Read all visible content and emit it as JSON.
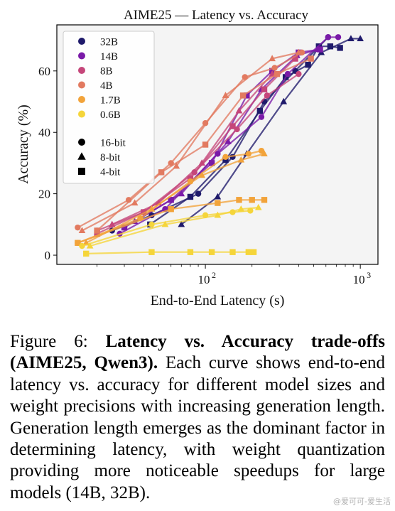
{
  "colors": {
    "32B": "#1f1a6b",
    "14B": "#7a1aa8",
    "8B": "#c5467a",
    "4B": "#e27a60",
    "1.7B": "#f2a33a",
    "0.6B": "#f5d53a",
    "plot_bg": "#f4f4f4"
  },
  "caption": {
    "prefix": "Figure 6: ",
    "bold": "Latency vs.  Accuracy trade-offs (AIME25, Qwen3).",
    "body": " Each curve shows end-to-end latency vs.  accuracy for different model sizes and weight precisions with increasing generation length.  Generation length emerges as the dominant factor in determining latency, with weight quantization providing more noticeable speedups for large models (14B, 32B)."
  },
  "watermark": "@爱可可-爱生活",
  "chart_data": {
    "type": "line",
    "title": "AIME25 — Latency vs. Accuracy",
    "xlabel": "End-to-End Latency (s)",
    "ylabel": "Accuracy (%)",
    "xscale": "log",
    "xlim": [
      11,
      1300
    ],
    "ylim": [
      -3,
      75
    ],
    "xticks": [
      {
        "value": 100,
        "base": "10",
        "exp": "2"
      },
      {
        "value": 1000,
        "base": "10",
        "exp": "3"
      }
    ],
    "yticks": [
      0,
      20,
      40,
      60
    ],
    "grid": false,
    "legend_position": "top-left",
    "legend_models": [
      "32B",
      "14B",
      "8B",
      "4B",
      "1.7B",
      "0.6B"
    ],
    "legend_precisions": [
      {
        "label": "16-bit",
        "marker": "circle"
      },
      {
        "label": "8-bit",
        "marker": "triangle"
      },
      {
        "label": "4-bit",
        "marker": "square"
      }
    ],
    "series": [
      {
        "model": "32B",
        "precision": "16-bit",
        "marker": "circle",
        "points": [
          [
            25,
            8
          ],
          [
            45,
            13
          ],
          [
            90,
            20
          ],
          [
            150,
            32
          ],
          [
            240,
            50
          ],
          [
            380,
            60
          ],
          [
            620,
            71
          ]
        ]
      },
      {
        "model": "32B",
        "precision": "8-bit",
        "marker": "triangle",
        "points": [
          [
            70,
            10
          ],
          [
            120,
            19
          ],
          [
            185,
            33
          ],
          [
            320,
            50
          ],
          [
            560,
            66
          ],
          [
            870,
            70.5
          ],
          [
            1000,
            70.5
          ]
        ]
      },
      {
        "model": "32B",
        "precision": "4-bit",
        "marker": "square",
        "points": [
          [
            44,
            10
          ],
          [
            80,
            19
          ],
          [
            135,
            31
          ],
          [
            225,
            47
          ],
          [
            330,
            58
          ],
          [
            460,
            62
          ],
          [
            540,
            68
          ],
          [
            640,
            68
          ],
          [
            740,
            67.5
          ]
        ]
      },
      {
        "model": "14B",
        "precision": "16-bit",
        "marker": "circle",
        "points": [
          [
            28,
            7
          ],
          [
            55,
            15
          ],
          [
            120,
            33
          ],
          [
            230,
            45
          ],
          [
            340,
            59
          ],
          [
            620,
            71
          ],
          [
            720,
            71
          ]
        ]
      },
      {
        "model": "14B",
        "precision": "8-bit",
        "marker": "triangle",
        "points": [
          [
            35,
            11
          ],
          [
            70,
            20
          ],
          [
            140,
            37
          ],
          [
            230,
            54
          ],
          [
            390,
            65
          ],
          [
            530,
            67
          ]
        ]
      },
      {
        "model": "14B",
        "precision": "4-bit",
        "marker": "square",
        "points": [
          [
            30,
            9
          ],
          [
            60,
            18
          ],
          [
            110,
            30
          ],
          [
            185,
            52
          ],
          [
            270,
            60
          ],
          [
            400,
            66
          ],
          [
            550,
            67
          ]
        ]
      },
      {
        "model": "8B",
        "precision": "16-bit",
        "marker": "circle",
        "points": [
          [
            20,
            8
          ],
          [
            40,
            14
          ],
          [
            85,
            27
          ],
          [
            160,
            41
          ],
          [
            250,
            52
          ],
          [
            400,
            59
          ]
        ]
      },
      {
        "model": "8B",
        "precision": "8-bit",
        "marker": "triangle",
        "points": [
          [
            25,
            10
          ],
          [
            50,
            17
          ],
          [
            95,
            30
          ],
          [
            165,
            47
          ],
          [
            270,
            59
          ]
        ]
      },
      {
        "model": "8B",
        "precision": "4-bit",
        "marker": "square",
        "points": [
          [
            20,
            7
          ],
          [
            40,
            14
          ],
          [
            80,
            25
          ],
          [
            150,
            42
          ],
          [
            240,
            54
          ],
          [
            380,
            64
          ]
        ]
      },
      {
        "model": "4B",
        "precision": "16-bit",
        "marker": "circle",
        "points": [
          [
            15,
            9
          ],
          [
            32,
            18
          ],
          [
            60,
            30
          ],
          [
            100,
            43
          ],
          [
            180,
            58
          ],
          [
            280,
            61
          ],
          [
            420,
            66
          ]
        ]
      },
      {
        "model": "4B",
        "precision": "8-bit",
        "marker": "triangle",
        "points": [
          [
            16,
            8
          ],
          [
            35,
            17
          ],
          [
            65,
            29
          ],
          [
            135,
            52
          ],
          [
            270,
            64
          ],
          [
            400,
            66
          ]
        ]
      },
      {
        "model": "4B",
        "precision": "4-bit",
        "marker": "square",
        "points": [
          [
            20,
            8
          ],
          [
            52,
            27
          ],
          [
            100,
            36
          ],
          [
            175,
            52
          ],
          [
            290,
            59
          ],
          [
            480,
            64
          ]
        ]
      },
      {
        "model": "1.7B",
        "precision": "16-bit",
        "marker": "circle",
        "points": [
          [
            15,
            4
          ],
          [
            38,
            12
          ],
          [
            80,
            24
          ],
          [
            135,
            32
          ],
          [
            190,
            33
          ],
          [
            230,
            34
          ]
        ]
      },
      {
        "model": "1.7B",
        "precision": "8-bit",
        "marker": "triangle",
        "points": [
          [
            17,
            4
          ],
          [
            45,
            15
          ],
          [
            95,
            26
          ],
          [
            170,
            31
          ],
          [
            240,
            33
          ]
        ]
      },
      {
        "model": "1.7B",
        "precision": "4-bit",
        "marker": "square",
        "points": [
          [
            15,
            4
          ],
          [
            60,
            15
          ],
          [
            120,
            17
          ],
          [
            165,
            18
          ],
          [
            200,
            18
          ],
          [
            240,
            18
          ]
        ]
      },
      {
        "model": "0.6B",
        "precision": "16-bit",
        "marker": "circle",
        "points": [
          [
            16,
            3
          ],
          [
            45,
            10
          ],
          [
            100,
            13
          ],
          [
            150,
            14
          ],
          [
            195,
            14.5
          ]
        ]
      },
      {
        "model": "0.6B",
        "precision": "8-bit",
        "marker": "triangle",
        "points": [
          [
            18,
            3
          ],
          [
            55,
            10
          ],
          [
            120,
            13
          ],
          [
            170,
            15
          ],
          [
            220,
            15.5
          ]
        ]
      },
      {
        "model": "0.6B",
        "precision": "4-bit",
        "marker": "square",
        "points": [
          [
            17,
            0.5
          ],
          [
            45,
            1
          ],
          [
            80,
            1
          ],
          [
            110,
            1
          ],
          [
            150,
            1
          ],
          [
            190,
            1
          ],
          [
            205,
            1
          ]
        ]
      }
    ]
  }
}
